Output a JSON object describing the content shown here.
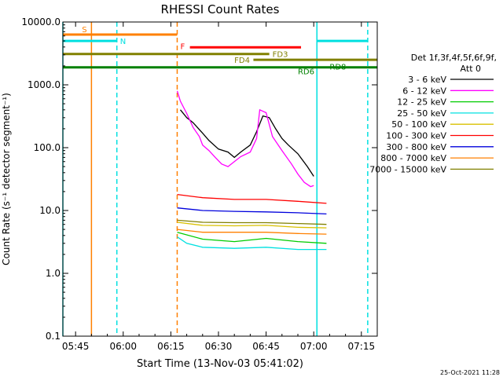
{
  "chart_data": {
    "type": "line",
    "title": "RHESSI Count Rates",
    "xlabel": "Start Time (13-Nov-03 05:41:02)",
    "ylabel": "Count Rate (s⁻¹ detector segment⁻¹)",
    "yscale": "log",
    "ylim": [
      0.1,
      10000
    ],
    "xlim_minutes": [
      "05:41",
      "07:20"
    ],
    "x_ticks": [
      "05:45",
      "06:00",
      "06:15",
      "06:30",
      "06:45",
      "07:00",
      "07:15"
    ],
    "y_ticks": [
      "10000.0",
      "1000.0",
      "100.0",
      "10.0",
      "1.0",
      "0.1"
    ],
    "footer_date": "25-Oct-2021 11:28",
    "legend_header": [
      "Det 1f,3f,4f,5f,6f,9f,",
      "Att 0"
    ],
    "legend_placement": "right",
    "series": [
      {
        "name": "3 - 6 keV",
        "color": "#000000",
        "points": [
          [
            "06:18",
            400
          ],
          [
            "06:20",
            300
          ],
          [
            "06:22",
            250
          ],
          [
            "06:25",
            170
          ],
          [
            "06:27",
            130
          ],
          [
            "06:30",
            95
          ],
          [
            "06:33",
            85
          ],
          [
            "06:35",
            70
          ],
          [
            "06:37",
            85
          ],
          [
            "06:40",
            110
          ],
          [
            "06:42",
            180
          ],
          [
            "06:44",
            320
          ],
          [
            "06:46",
            300
          ],
          [
            "06:48",
            200
          ],
          [
            "06:50",
            140
          ],
          [
            "06:52",
            110
          ],
          [
            "06:55",
            80
          ],
          [
            "06:58",
            50
          ],
          [
            "07:00",
            35
          ]
        ]
      },
      {
        "name": "6 - 12 keV",
        "color": "#ff00ff",
        "points": [
          [
            "06:17",
            800
          ],
          [
            "06:18",
            550
          ],
          [
            "06:20",
            350
          ],
          [
            "06:22",
            210
          ],
          [
            "06:24",
            150
          ],
          [
            "06:25",
            110
          ],
          [
            "06:27",
            90
          ],
          [
            "06:29",
            70
          ],
          [
            "06:31",
            55
          ],
          [
            "06:33",
            50
          ],
          [
            "06:35",
            60
          ],
          [
            "06:37",
            72
          ],
          [
            "06:40",
            85
          ],
          [
            "06:42",
            140
          ],
          [
            "06:43",
            400
          ],
          [
            "06:45",
            360
          ],
          [
            "06:47",
            150
          ],
          [
            "06:50",
            90
          ],
          [
            "06:53",
            55
          ],
          [
            "06:55",
            38
          ],
          [
            "06:57",
            28
          ],
          [
            "06:59",
            24
          ],
          [
            "07:00",
            25
          ]
        ]
      },
      {
        "name": "12 - 25 keV",
        "color": "#00cc00",
        "points": [
          [
            "06:17",
            4.5
          ],
          [
            "06:25",
            3.5
          ],
          [
            "06:35",
            3.2
          ],
          [
            "06:45",
            3.6
          ],
          [
            "06:55",
            3.2
          ],
          [
            "07:04",
            3.0
          ]
        ]
      },
      {
        "name": "25 - 50 keV",
        "color": "#00e0e0",
        "points": [
          [
            "06:17",
            3.8
          ],
          [
            "06:20",
            3.0
          ],
          [
            "06:25",
            2.6
          ],
          [
            "06:35",
            2.5
          ],
          [
            "06:45",
            2.6
          ],
          [
            "06:55",
            2.4
          ],
          [
            "07:04",
            2.4
          ]
        ]
      },
      {
        "name": "50 - 100 keV",
        "color": "#d8c000",
        "points": [
          [
            "06:17",
            6.5
          ],
          [
            "06:25",
            5.8
          ],
          [
            "06:35",
            5.7
          ],
          [
            "06:45",
            5.8
          ],
          [
            "06:55",
            5.4
          ],
          [
            "07:04",
            5.3
          ]
        ]
      },
      {
        "name": "100 - 300 keV",
        "color": "#ff0000",
        "points": [
          [
            "06:17",
            18
          ],
          [
            "06:25",
            16
          ],
          [
            "06:35",
            15
          ],
          [
            "06:45",
            15
          ],
          [
            "06:55",
            14
          ],
          [
            "07:04",
            13
          ]
        ]
      },
      {
        "name": "300 - 800 keV",
        "color": "#0000dd",
        "points": [
          [
            "06:17",
            11
          ],
          [
            "06:25",
            10
          ],
          [
            "06:35",
            9.7
          ],
          [
            "06:45",
            9.5
          ],
          [
            "06:55",
            9.2
          ],
          [
            "07:04",
            8.8
          ]
        ]
      },
      {
        "name": "800 - 7000 keV",
        "color": "#ff8000",
        "points": [
          [
            "06:17",
            5.0
          ],
          [
            "06:25",
            4.5
          ],
          [
            "06:35",
            4.5
          ],
          [
            "06:45",
            4.5
          ],
          [
            "06:55",
            4.3
          ],
          [
            "07:04",
            4.2
          ]
        ]
      },
      {
        "name": "7000 - 15000 keV",
        "color": "#808000",
        "points": [
          [
            "06:17",
            7
          ],
          [
            "06:25",
            6.5
          ],
          [
            "06:35",
            6.4
          ],
          [
            "06:45",
            6.4
          ],
          [
            "06:55",
            6.2
          ],
          [
            "07:04",
            6.0
          ]
        ]
      }
    ],
    "flag_bars": [
      {
        "label": "S",
        "color": "#ff8000",
        "start": "05:41",
        "end": "06:17",
        "level": 6300
      },
      {
        "label": "N",
        "color": "#00e0e0",
        "start": "05:41",
        "end": "05:58",
        "level": 5000
      },
      {
        "label": "",
        "color": "#00e0e0",
        "start": "07:01",
        "end": "07:17",
        "level": 5000
      },
      {
        "label": "F",
        "color": "#ff0000",
        "start": "06:21",
        "end": "06:56",
        "level": 3950
      },
      {
        "label": "FD3",
        "color": "#808000",
        "start": "05:41",
        "end": "06:46",
        "level": 3100
      },
      {
        "label": "FD4",
        "color": "#808000",
        "start": "06:41",
        "end": "07:20",
        "level": 2500
      },
      {
        "label": "RD6",
        "color": "#008000",
        "start": "05:41",
        "end": "07:20",
        "level": 1900
      },
      {
        "label": "RD8",
        "color": "#008000",
        "start": "",
        "end": "",
        "level": 1900
      }
    ],
    "vertical_markers": [
      {
        "time": "05:41",
        "color": "#00e0e0",
        "style": "solid"
      },
      {
        "time": "05:50",
        "color": "#ff8000",
        "style": "solid"
      },
      {
        "time": "05:58",
        "color": "#00e0e0",
        "style": "dashed"
      },
      {
        "time": "06:17",
        "color": "#ff8000",
        "style": "dashed"
      },
      {
        "time": "07:01",
        "color": "#00e0e0",
        "style": "solid"
      },
      {
        "time": "07:17",
        "color": "#00e0e0",
        "style": "dashed"
      }
    ]
  }
}
